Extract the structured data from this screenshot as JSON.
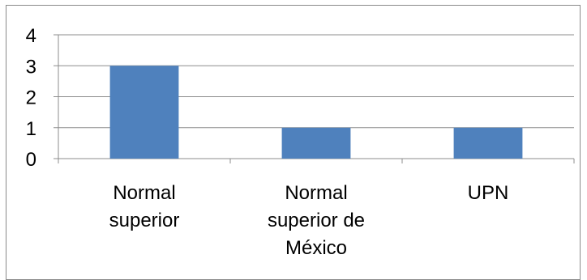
{
  "chart_data": {
    "type": "bar",
    "categories": [
      [
        "Normal",
        "superior"
      ],
      [
        "Normal",
        "superior de",
        "México"
      ],
      [
        "UPN"
      ]
    ],
    "values": [
      3,
      1,
      1
    ],
    "ylim": [
      0,
      4
    ],
    "yticks": [
      "0",
      "1",
      "2",
      "3",
      "4"
    ],
    "grid": true,
    "legend": "none",
    "bar_color": "#4f81bd",
    "grid_color": "#8c8c8c"
  }
}
